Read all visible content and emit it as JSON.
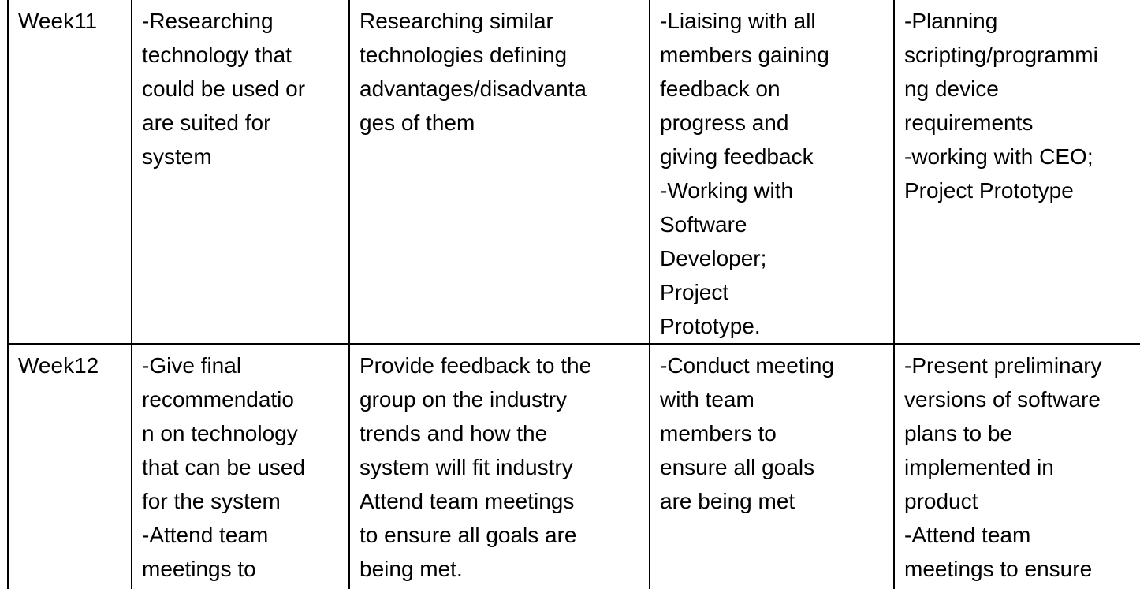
{
  "rows": [
    {
      "week": "Week11",
      "col1": [
        "-Researching",
        "technology that",
        "could be used or",
        "are suited for",
        "system"
      ],
      "col2": [
        "Researching similar",
        "technologies defining",
        "advantages/disadvanta",
        "ges of them"
      ],
      "col3": [
        "-Liaising with all",
        "members gaining",
        "feedback on",
        "progress and",
        "giving feedback",
        "-Working with",
        "Software",
        "Developer;",
        "Project",
        "Prototype."
      ],
      "col4": [
        "-Planning",
        "scripting/programmi",
        "ng device",
        "requirements",
        "-working with CEO;",
        "Project Prototype"
      ]
    },
    {
      "week": "Week12",
      "col1": [
        "-Give final",
        "recommendatio",
        "n on technology",
        "that can be used",
        "for the system",
        "-Attend team",
        "meetings to"
      ],
      "col2": [
        "Provide feedback to the",
        "group on the industry",
        "trends and how the",
        "system will fit industry",
        "Attend team meetings",
        "to ensure all goals are",
        "being met."
      ],
      "col3": [
        "-Conduct meeting",
        "with team",
        "members to",
        "ensure all goals",
        "are being met"
      ],
      "col4": [
        "-Present preliminary",
        "versions of software",
        "plans to be",
        "implemented in",
        "product",
        "-Attend team",
        "meetings to ensure"
      ]
    }
  ]
}
